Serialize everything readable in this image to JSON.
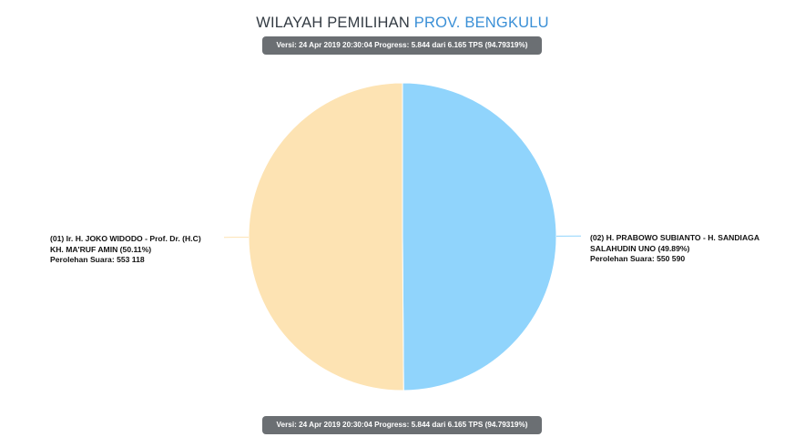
{
  "header": {
    "title_prefix": "WILAYAH PEMILIHAN",
    "title_region": "PROV. BENGKULU"
  },
  "badges": {
    "top": "Versi: 24 Apr 2019 20:30:04 Progress: 5.844 dari 6.165 TPS (94.79319%)",
    "bottom": "Versi: 24 Apr 2019 20:30:04 Progress: 5.844 dari 6.165 TPS (94.79319%)"
  },
  "labels": {
    "left": {
      "line1": "(01) Ir. H. JOKO WIDODO - Prof. Dr. (H.C)",
      "line2": "KH. MA'RUF AMIN (50.11%)",
      "line3": "Perolehan Suara: 553 118"
    },
    "right": {
      "line1": "(02) H. PRABOWO SUBIANTO - H. SANDIAGA",
      "line2": "SALAHUDIN UNO (49.89%)",
      "line3": "Perolehan Suara: 550 590"
    }
  },
  "chart_data": {
    "type": "pie",
    "title": "WILAYAH PEMILIHAN PROV. BENGKULU",
    "slices": [
      {
        "label": "(02) H. PRABOWO SUBIANTO - H. SANDIAGA SALAHUDIN UNO",
        "value": 550590,
        "percent": 49.89,
        "color": "#90d4fc"
      },
      {
        "label": "(01) Ir. H. JOKO WIDODO - Prof. Dr. (H.C) KH. MA'RUF AMIN",
        "value": 553118,
        "percent": 50.11,
        "color": "#fde3b3"
      }
    ],
    "start": "12 o'clock",
    "direction": "clockwise"
  }
}
